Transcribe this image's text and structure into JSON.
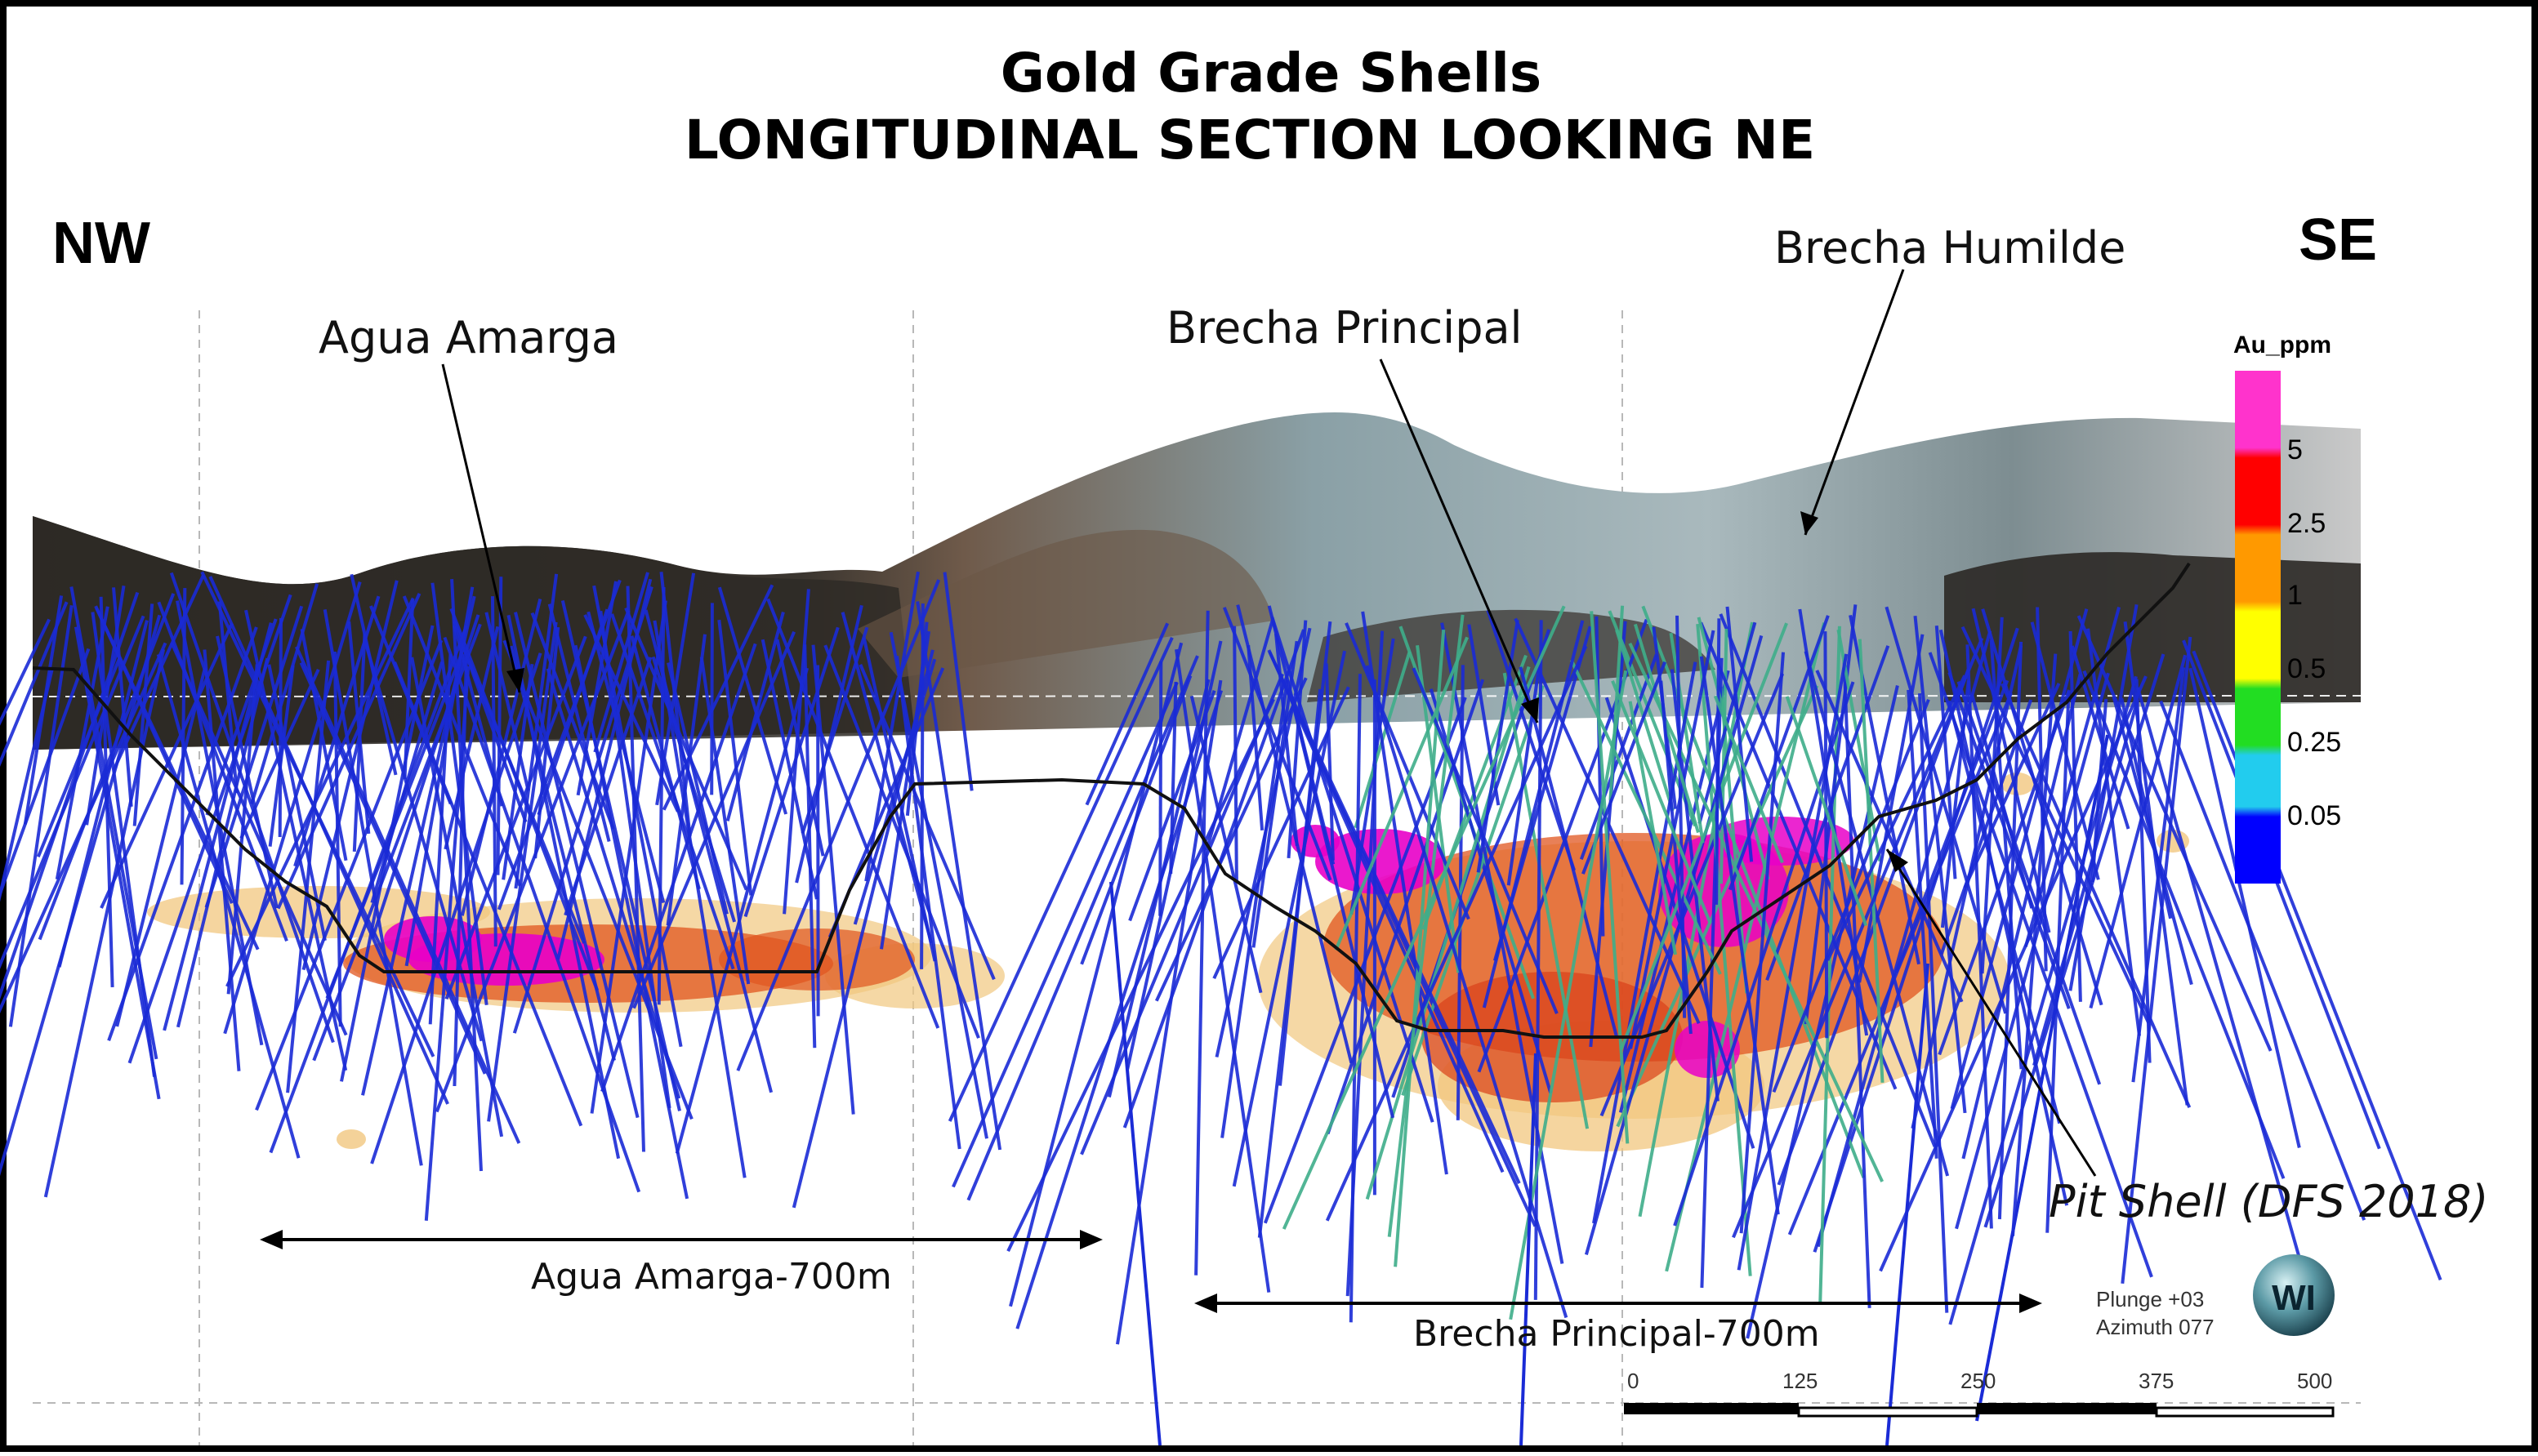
{
  "title": {
    "line1": "Gold Grade Shells",
    "line2": "LONGITUDINAL SECTION LOOKING NE"
  },
  "directions": {
    "left": "NW",
    "right": "SE"
  },
  "labels": {
    "agua_amarga": "Agua Amarga",
    "brecha_principal": "Brecha Principal",
    "brecha_humilde": "Brecha Humilde",
    "pit_shell": "Pit Shell (DFS 2018)"
  },
  "spans": {
    "agua_amarga": "Agua Amarga-700m",
    "brecha_principal": "Brecha Principal-700m"
  },
  "legend": {
    "title": "Au_ppm",
    "ticks": [
      "5",
      "2.5",
      "1",
      "0.5",
      "0.25",
      "0.05"
    ],
    "colors": [
      "#ff33cc",
      "#ff0000",
      "#ff9900",
      "#ffff00",
      "#22dd22",
      "#22ccee",
      "#0000ff"
    ]
  },
  "orientation": {
    "plunge": "Plunge +03",
    "azimuth": "Azimuth 077"
  },
  "logo_text": "WI",
  "scale_bar": {
    "ticks": [
      "0",
      "125",
      "250",
      "375",
      "500"
    ]
  },
  "colors": {
    "drillhole": "#1a2bd6",
    "terrain_dark": "#2e2a26",
    "terrain_light": "#8a9ea3",
    "shell_outer": "#f1c77f",
    "shell_mid": "#e0561f",
    "shell_high": "#e800c8"
  }
}
